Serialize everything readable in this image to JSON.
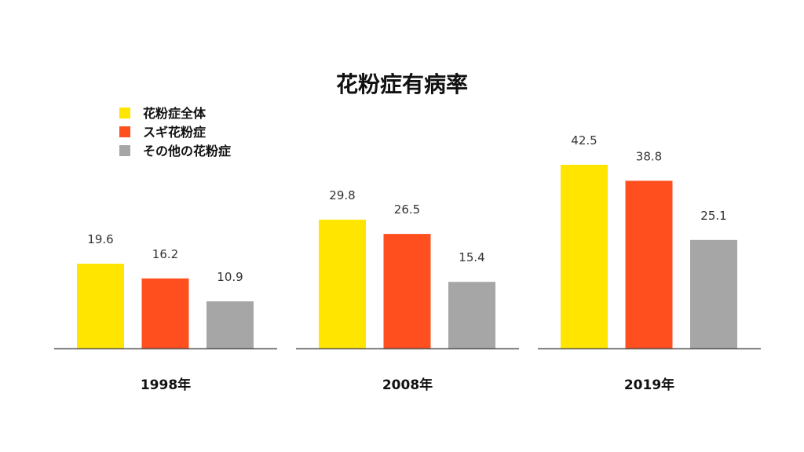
{
  "chart_data": {
    "type": "bar",
    "title": "花粉症有病率",
    "categories": [
      "1998年",
      "2008年",
      "2019年"
    ],
    "series": [
      {
        "name": "花粉症全体",
        "color": "#FFE500",
        "values": [
          19.6,
          29.8,
          42.5
        ]
      },
      {
        "name": "スギ花粉症",
        "color": "#FF4F1F",
        "values": [
          16.2,
          26.5,
          38.8
        ]
      },
      {
        "name": "その他の花粉症",
        "color": "#A6A6A6",
        "values": [
          10.9,
          15.4,
          25.1
        ]
      }
    ],
    "ylim": [
      0,
      45
    ],
    "grid": false,
    "legend_position": "top-left",
    "axis_color": "#555555"
  }
}
